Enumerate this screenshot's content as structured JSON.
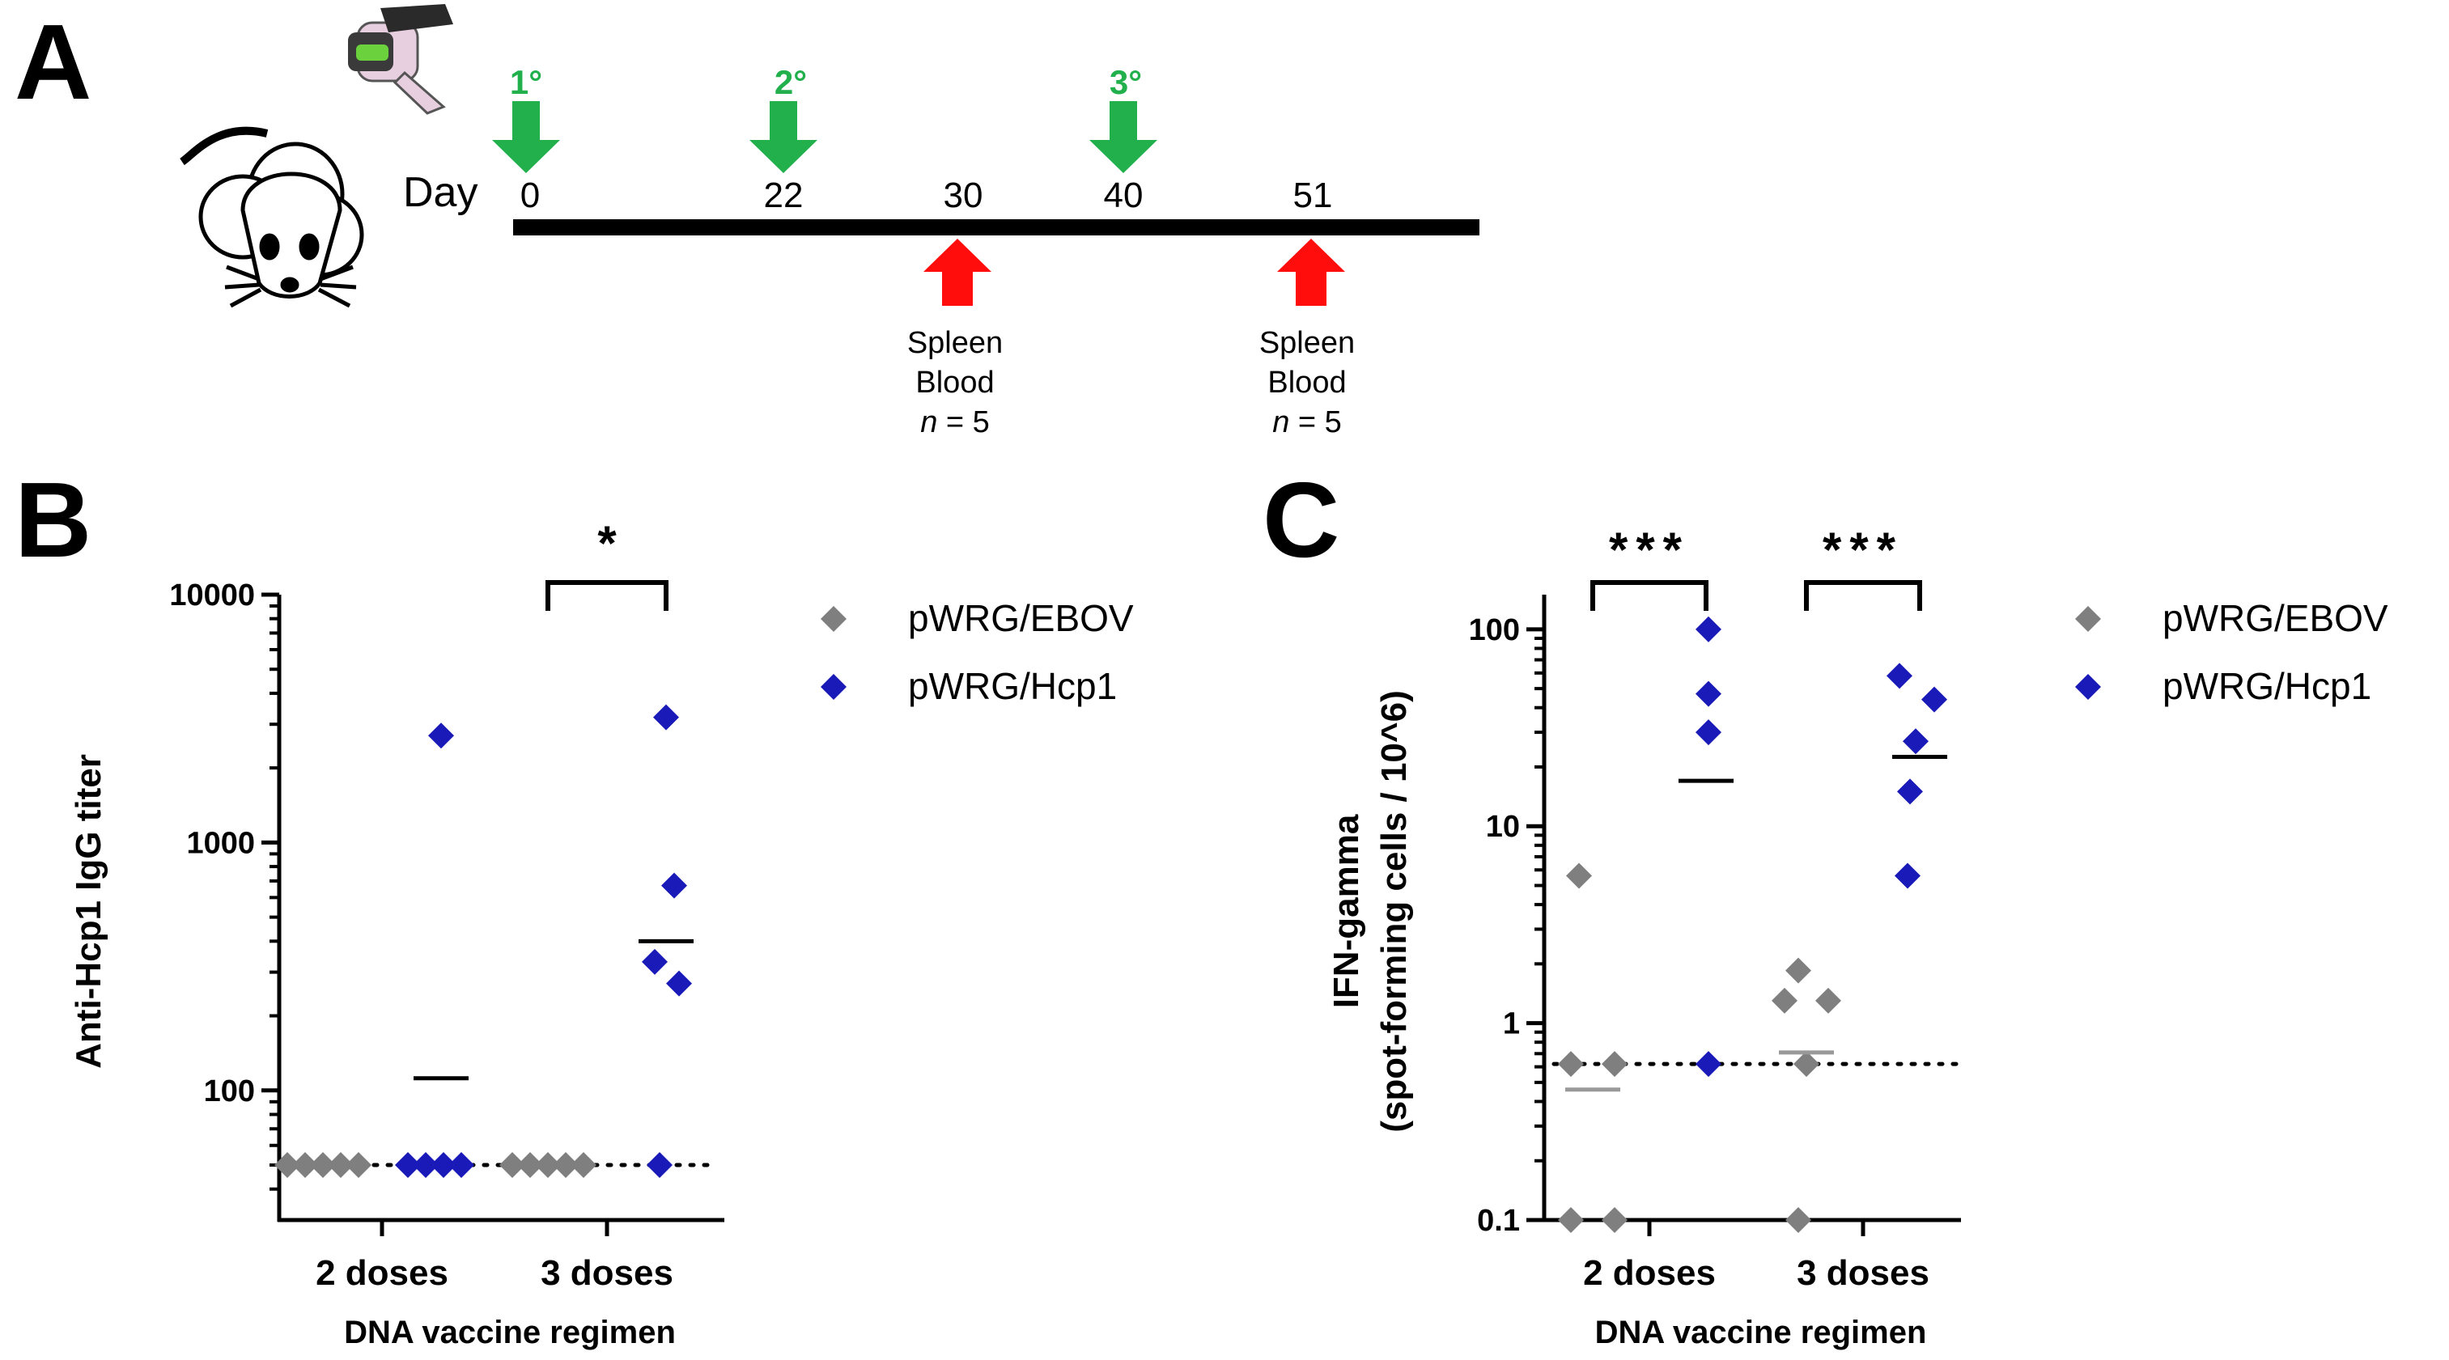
{
  "colors": {
    "ebov": "#7f7f7f",
    "hcp1": "#1a1ab8",
    "prime": "#21b04b",
    "sample": "#ff0d0d",
    "axis": "#000000"
  },
  "panel_a": {
    "letter": "A",
    "day_label": "Day",
    "icons": [
      "mouse-icon",
      "gene-gun-icon"
    ],
    "days": [
      "0",
      "22",
      "30",
      "40",
      "51"
    ],
    "doses": [
      {
        "label": "1°",
        "day": "0"
      },
      {
        "label": "2°",
        "day": "22"
      },
      {
        "label": "3°",
        "day": "40"
      }
    ],
    "samplings": [
      {
        "day": "30",
        "line1": "Spleen",
        "line2": "Blood",
        "n_italic": "n",
        "n_rest": " = 5"
      },
      {
        "day": "51",
        "line1": "Spleen",
        "line2": "Blood",
        "n_italic": "n",
        "n_rest": " = 5"
      }
    ]
  },
  "chart_data": [
    {
      "panel": "B",
      "type": "scatter",
      "scale": "log",
      "ylabel": "Anti-Hcp1 IgG titer",
      "xlabel": "DNA vaccine regimen",
      "categories": [
        "2 doses",
        "3 doses"
      ],
      "ylim": [
        30,
        10000
      ],
      "yticks": [
        "100",
        "1000",
        "10000"
      ],
      "detection_limit": 50,
      "legend": [
        "pWRG/EBOV",
        "pWRG/Hcp1"
      ],
      "series": [
        {
          "name": "pWRG/EBOV",
          "color_key": "ebov",
          "groups": [
            [
              50,
              50,
              50,
              50,
              50
            ],
            [
              50,
              50,
              50,
              50,
              50
            ]
          ],
          "means": [
            50,
            50
          ]
        },
        {
          "name": "pWRG/Hcp1",
          "color_key": "hcp1",
          "groups": [
            [
              2700,
              50,
              50,
              50,
              50
            ],
            [
              3200,
              670,
              330,
              270,
              50
            ]
          ],
          "means": [
            112,
            400
          ]
        }
      ],
      "significance": [
        {
          "category": "3 doses",
          "label": "*"
        }
      ]
    },
    {
      "panel": "C",
      "type": "scatter",
      "scale": "log",
      "ylabel": "IFN-gamma",
      "ylabel2": "(spot-forming cells / 10^6)",
      "xlabel": "DNA vaccine regimen",
      "categories": [
        "2 doses",
        "3 doses"
      ],
      "ylim": [
        0.1,
        150
      ],
      "yticks": [
        "0.1",
        "1",
        "10",
        "100"
      ],
      "detection_limit": 0.62,
      "legend": [
        "pWRG/EBOV",
        "pWRG/Hcp1"
      ],
      "series": [
        {
          "name": "pWRG/EBOV",
          "color_key": "ebov",
          "groups": [
            [
              5.6,
              0.62,
              0.62,
              0.1,
              0.1
            ],
            [
              1.85,
              1.3,
              1.3,
              0.62,
              0.1
            ]
          ],
          "means": [
            0.46,
            0.71
          ]
        },
        {
          "name": "pWRG/Hcp1",
          "color_key": "hcp1",
          "groups": [
            [
              100,
              47,
              30,
              0.62
            ],
            [
              58,
              44,
              27,
              15,
              5.6
            ]
          ],
          "means": [
            17,
            22.5
          ]
        }
      ],
      "significance": [
        {
          "category": "2 doses",
          "label": "***"
        },
        {
          "category": "3 doses",
          "label": "***"
        }
      ]
    }
  ]
}
